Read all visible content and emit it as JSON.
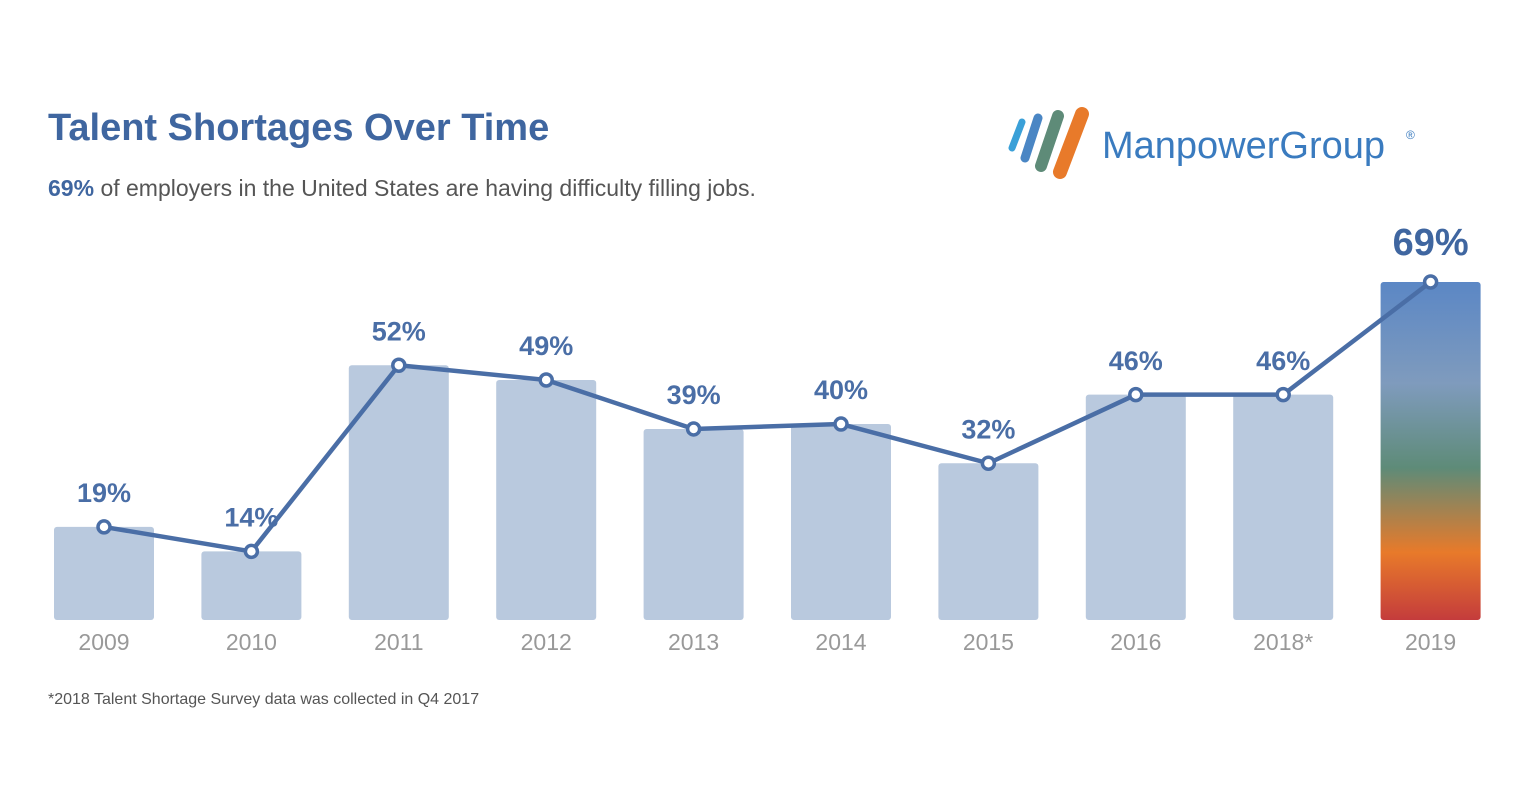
{
  "chart_data": {
    "type": "bar",
    "title": "Talent Shortages Over Time",
    "subtitle": [
      "69%",
      "of employers in the United States are having difficulty filling jobs."
    ],
    "logo": "ManpowerGroup",
    "logo_mark": "®",
    "categories": [
      "2009",
      "2010",
      "2011",
      "2012",
      "2013",
      "2014",
      "2015",
      "2016",
      "2018*",
      "2019"
    ],
    "values": [
      19,
      14,
      52,
      49,
      39,
      40,
      32,
      46,
      46,
      69
    ],
    "value_labels": [
      "19%",
      "14%",
      "52%",
      "49%",
      "39%",
      "40%",
      "32%",
      "46%",
      "46%",
      "69%"
    ],
    "color": "#b9c9de",
    "line_color": "#4a6ea6",
    "footnote": "*2018 Talent Shortage Survey data was collected in Q4 2017"
  }
}
